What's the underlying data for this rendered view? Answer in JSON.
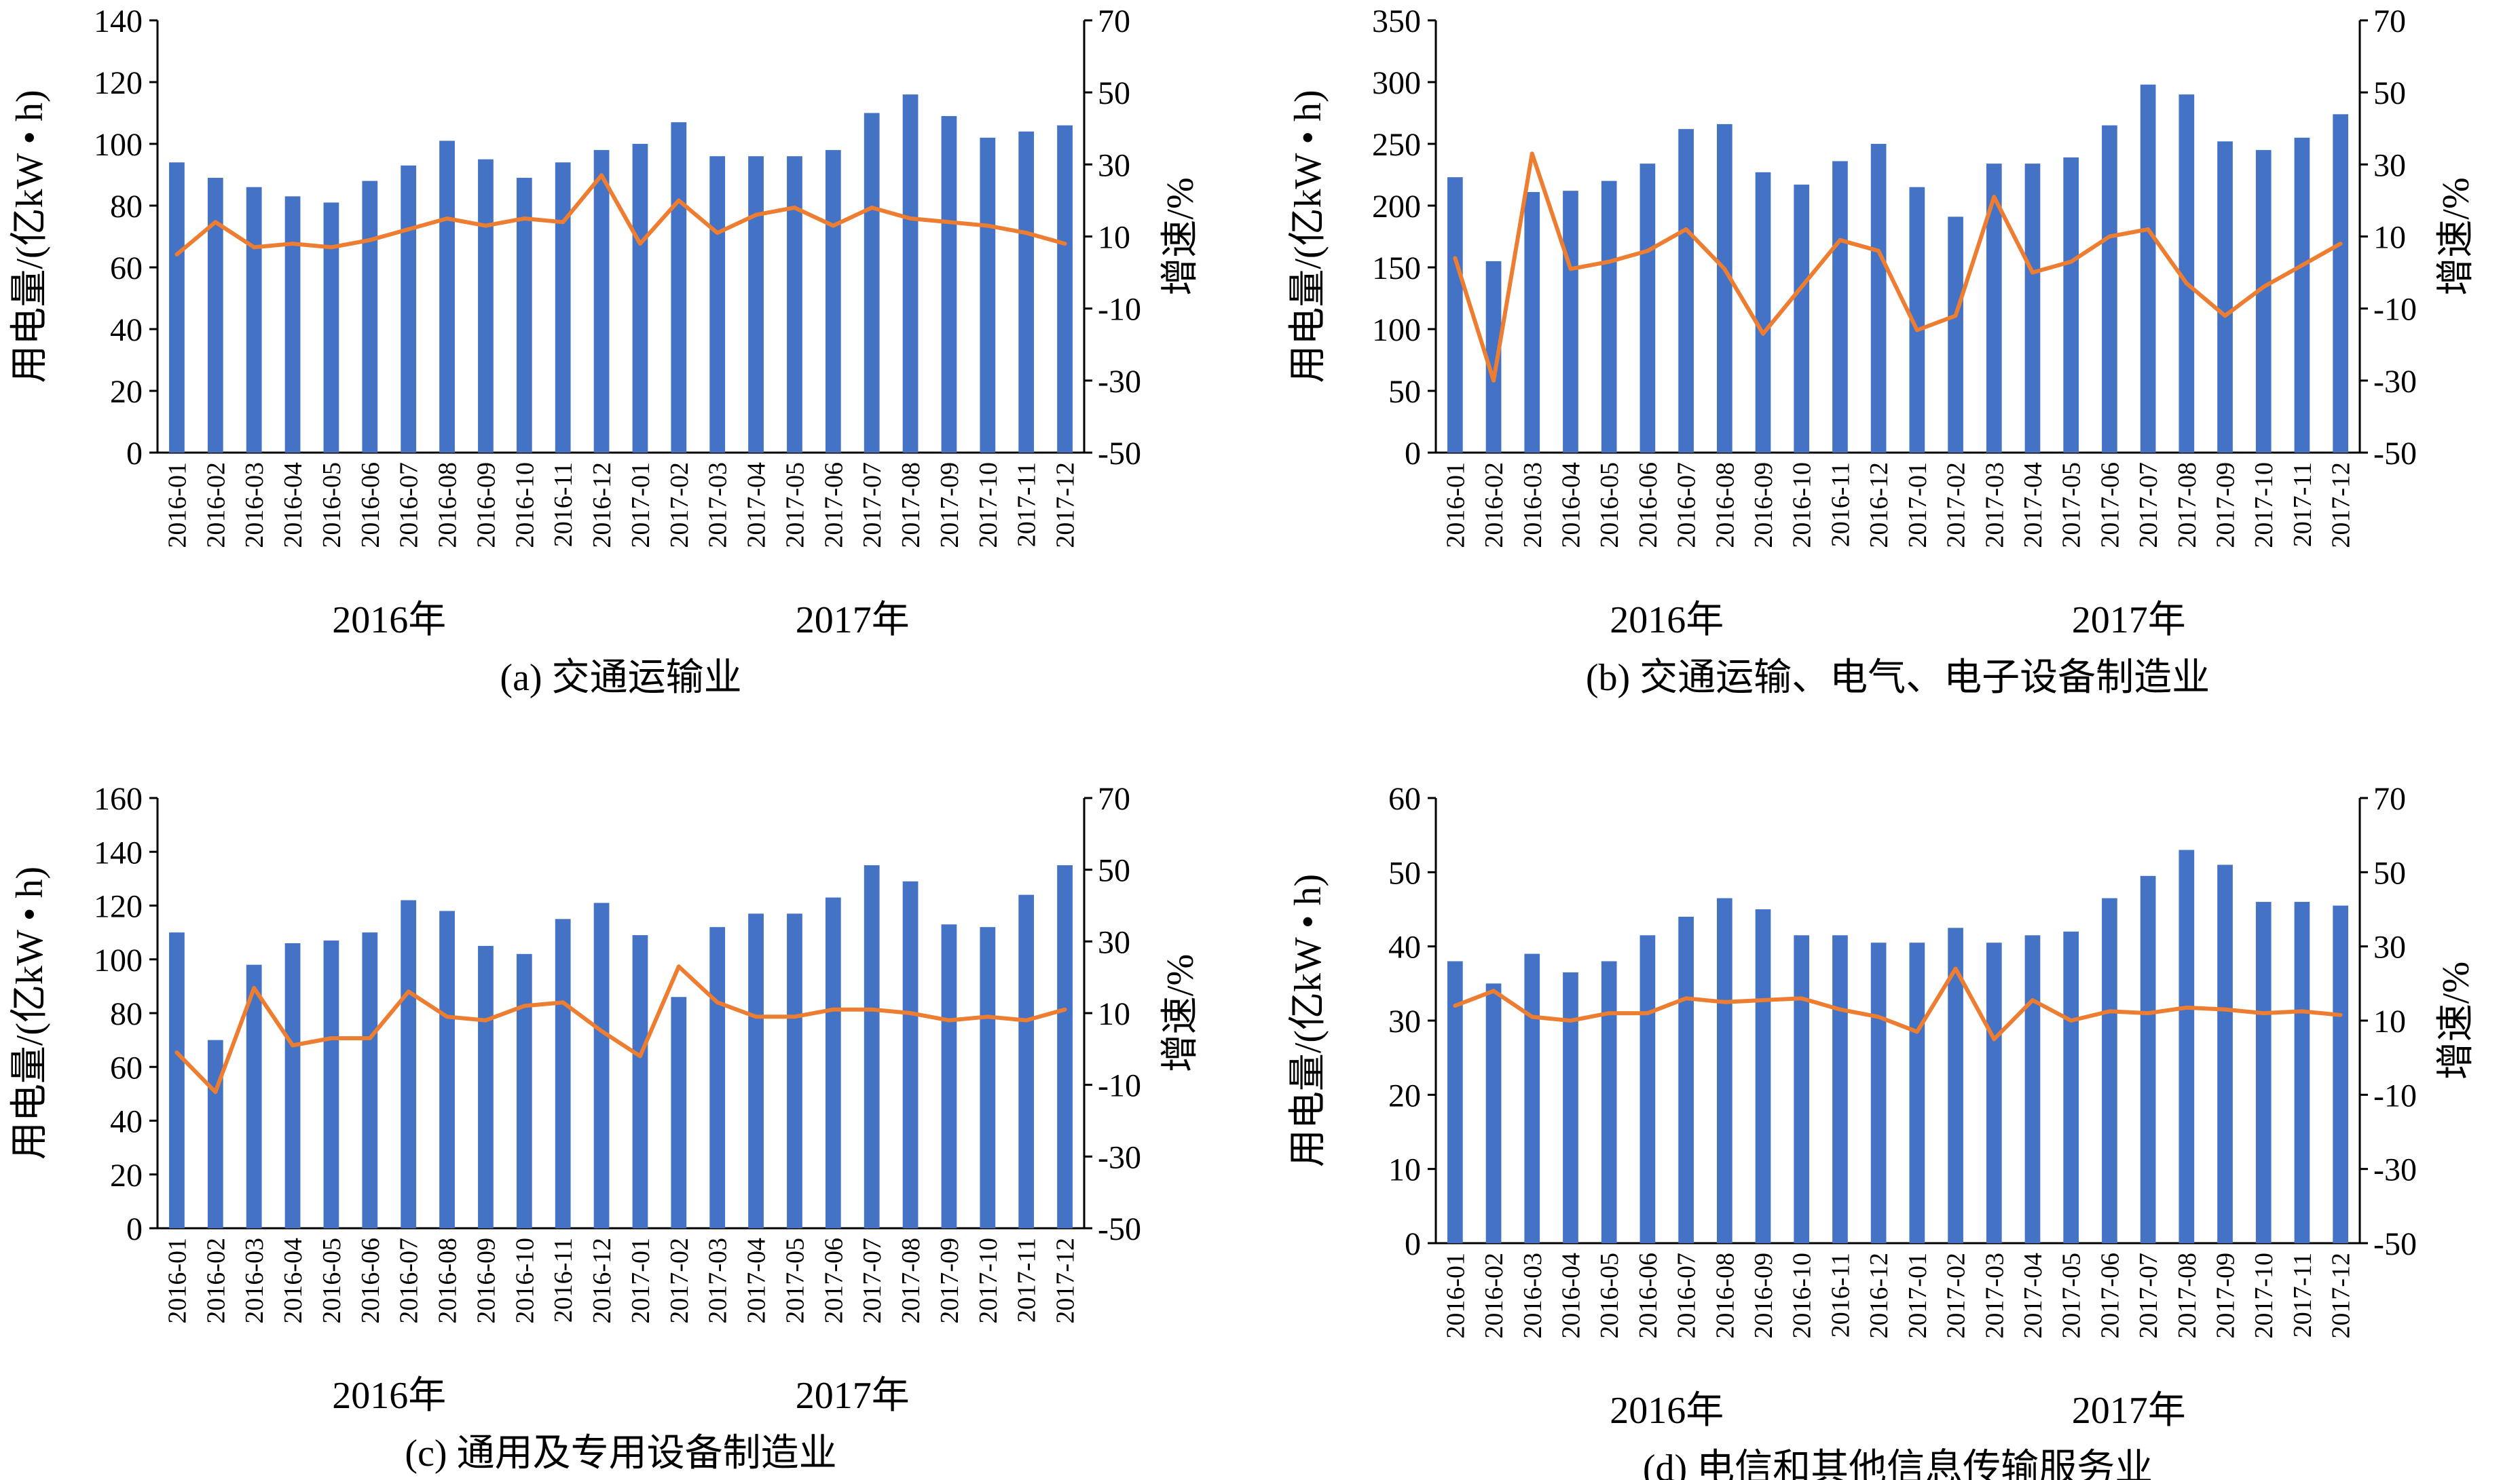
{
  "categories": [
    "2016-01",
    "2016-02",
    "2016-03",
    "2016-04",
    "2016-05",
    "2016-06",
    "2016-07",
    "2016-08",
    "2016-09",
    "2016-10",
    "2016-11",
    "2016-12",
    "2017-01",
    "2017-02",
    "2017-03",
    "2017-04",
    "2017-05",
    "2017-06",
    "2017-07",
    "2017-08",
    "2017-09",
    "2017-10",
    "2017-11",
    "2017-12"
  ],
  "year_labels": [
    "2016年",
    "2017年"
  ],
  "colors": {
    "bar": "#4472C4",
    "line": "#ED7D31"
  },
  "chart_data": [
    {
      "type": "bar",
      "caption": "(a) 交通运输业",
      "ylabel": "用电量/(亿kW • h)",
      "y2label": "增速/%",
      "ylim": [
        0,
        140
      ],
      "yticks": [
        0,
        20,
        40,
        60,
        80,
        100,
        120,
        140
      ],
      "y2lim": [
        -50,
        70
      ],
      "y2ticks": [
        -50,
        -30,
        -10,
        10,
        30,
        50,
        70
      ],
      "series": [
        {
          "type": "bar",
          "axis": "left",
          "values": [
            94,
            89,
            86,
            83,
            81,
            88,
            93,
            101,
            95,
            89,
            94,
            98,
            100,
            107,
            96,
            96,
            96,
            98,
            110,
            116,
            109,
            102,
            104,
            106
          ]
        },
        {
          "type": "line",
          "axis": "right",
          "values": [
            5,
            14,
            7,
            8,
            7,
            9,
            12,
            15,
            13,
            15,
            14,
            27,
            8,
            20,
            11,
            16,
            18,
            13,
            18,
            15,
            14,
            13,
            11,
            8
          ]
        }
      ]
    },
    {
      "type": "bar",
      "caption": "(b) 交通运输、电气、电子设备制造业",
      "ylabel": "用电量/(亿kW • h)",
      "y2label": "增速/%",
      "ylim": [
        0,
        350
      ],
      "yticks": [
        0,
        50,
        100,
        150,
        200,
        250,
        300,
        350
      ],
      "y2lim": [
        -50,
        70
      ],
      "y2ticks": [
        -50,
        -30,
        -10,
        10,
        30,
        50,
        70
      ],
      "series": [
        {
          "type": "bar",
          "axis": "left",
          "values": [
            223,
            155,
            211,
            212,
            220,
            234,
            262,
            266,
            227,
            217,
            236,
            250,
            215,
            191,
            234,
            234,
            239,
            265,
            298,
            290,
            252,
            245,
            255,
            274
          ]
        },
        {
          "type": "line",
          "axis": "right",
          "values": [
            4,
            -30,
            33,
            1,
            3,
            6,
            12,
            1,
            -17,
            -4,
            9,
            6,
            -16,
            -12,
            21,
            0,
            3,
            10,
            12,
            -3,
            -12,
            -4,
            2,
            8
          ]
        }
      ]
    },
    {
      "type": "bar",
      "caption": "(c) 通用及专用设备制造业",
      "ylabel": "用电量/(亿kW • h)",
      "y2label": "增速/%",
      "ylim": [
        0,
        160
      ],
      "yticks": [
        0,
        20,
        40,
        60,
        80,
        100,
        120,
        140,
        160
      ],
      "y2lim": [
        -50,
        70
      ],
      "y2ticks": [
        -50,
        -30,
        -10,
        10,
        30,
        50,
        70
      ],
      "series": [
        {
          "type": "bar",
          "axis": "left",
          "values": [
            110,
            70,
            98,
            106,
            107,
            110,
            122,
            118,
            105,
            102,
            115,
            121,
            109,
            86,
            112,
            117,
            117,
            123,
            135,
            129,
            113,
            112,
            124,
            135
          ]
        },
        {
          "type": "line",
          "axis": "right",
          "values": [
            -1,
            -12,
            17,
            1,
            3,
            3,
            16,
            9,
            8,
            12,
            13,
            5,
            -2,
            23,
            13,
            9,
            9,
            11,
            11,
            10,
            8,
            9,
            8,
            11
          ]
        }
      ]
    },
    {
      "type": "bar",
      "caption": "(d) 电信和其他信息传输服务业",
      "ylabel": "用电量/(亿kW • h)",
      "y2label": "增速/%",
      "ylim": [
        0,
        60
      ],
      "yticks": [
        0,
        10,
        20,
        30,
        40,
        50,
        60
      ],
      "y2lim": [
        -50,
        70
      ],
      "y2ticks": [
        -50,
        -30,
        -10,
        10,
        30,
        50,
        70
      ],
      "series": [
        {
          "type": "bar",
          "axis": "left",
          "values": [
            38,
            35,
            39,
            36.5,
            38,
            41.5,
            44,
            46.5,
            45,
            41.5,
            41.5,
            40.5,
            40.5,
            42.5,
            40.5,
            41.5,
            42,
            46.5,
            49.5,
            53,
            51,
            46,
            46,
            45.5
          ]
        },
        {
          "type": "line",
          "axis": "right",
          "values": [
            14,
            18,
            11,
            10,
            12,
            12,
            16,
            15,
            15.5,
            16,
            13,
            11,
            7,
            24,
            5,
            15.5,
            10,
            12.5,
            12,
            13.5,
            13,
            12,
            12.5,
            11.5
          ]
        }
      ]
    }
  ]
}
